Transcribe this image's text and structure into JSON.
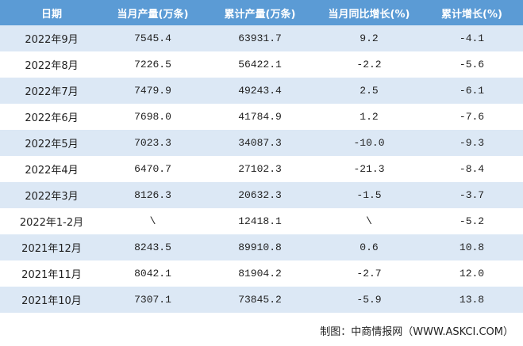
{
  "table": {
    "header": [
      "日期",
      "当月产量(万条)",
      "累计产量(万条)",
      "当月同比增长(%)",
      "累计增长(%)"
    ],
    "rows": [
      [
        "2022年9月",
        "7545.4",
        "63931.7",
        "9.2",
        "-4.1"
      ],
      [
        "2022年8月",
        "7226.5",
        "56422.1",
        "-2.2",
        "-5.6"
      ],
      [
        "2022年7月",
        "7479.9",
        "49243.4",
        "2.5",
        "-6.1"
      ],
      [
        "2022年6月",
        "7698.0",
        "41784.9",
        "1.2",
        "-7.6"
      ],
      [
        "2022年5月",
        "7023.3",
        "34087.3",
        "-10.0",
        "-9.3"
      ],
      [
        "2022年4月",
        "6470.7",
        "27102.3",
        "-21.3",
        "-8.4"
      ],
      [
        "2022年3月",
        "8126.3",
        "20632.3",
        "-1.5",
        "-3.7"
      ],
      [
        "2022年1-2月",
        "\\",
        "12418.1",
        "\\",
        "-5.2"
      ],
      [
        "2021年12月",
        "8243.5",
        "89910.8",
        "0.6",
        "10.8"
      ],
      [
        "2021年11月",
        "8042.1",
        "81904.2",
        "-2.7",
        "12.0"
      ],
      [
        "2021年10月",
        "7307.1",
        "73845.2",
        "-5.9",
        "13.8"
      ]
    ]
  },
  "footer": "制图：中商情报网（WWW.ASKCI.COM）"
}
